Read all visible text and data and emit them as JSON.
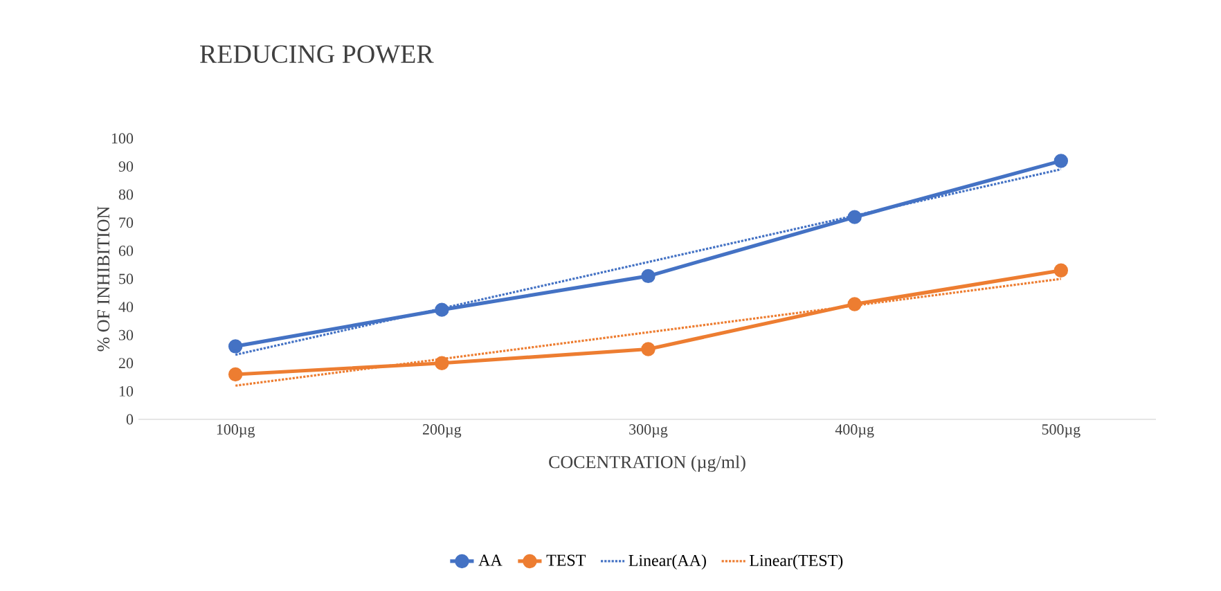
{
  "chart_data": {
    "type": "line",
    "title": "REDUCING POWER",
    "xlabel": "COCENTRATION (µg/ml)",
    "ylabel": "% OF INHIBITION",
    "categories": [
      "100µg",
      "200µg",
      "300µg",
      "400µg",
      "500µg"
    ],
    "ylim": [
      0,
      100
    ],
    "yticks": [
      0,
      10,
      20,
      30,
      40,
      50,
      60,
      70,
      80,
      90,
      100
    ],
    "grid": false,
    "legend": "bottom",
    "marker": "circle",
    "line_style": "solid",
    "series": [
      {
        "name": "AA",
        "color": "#4472c4",
        "values": [
          26,
          39,
          51,
          72,
          92
        ]
      },
      {
        "name": "TEST",
        "color": "#ed7d31",
        "values": [
          16,
          20,
          25,
          41,
          53
        ]
      },
      {
        "name": "Linear(AA)",
        "color": "#4472c4",
        "values": [
          23,
          39.5,
          56,
          72.5,
          89
        ],
        "marker": "none",
        "line_style": "dotted"
      },
      {
        "name": "Linear(TEST)",
        "color": "#ed7d31",
        "values": [
          12,
          21.5,
          31,
          40.5,
          50
        ],
        "marker": "none",
        "line_style": "dotted"
      }
    ]
  }
}
